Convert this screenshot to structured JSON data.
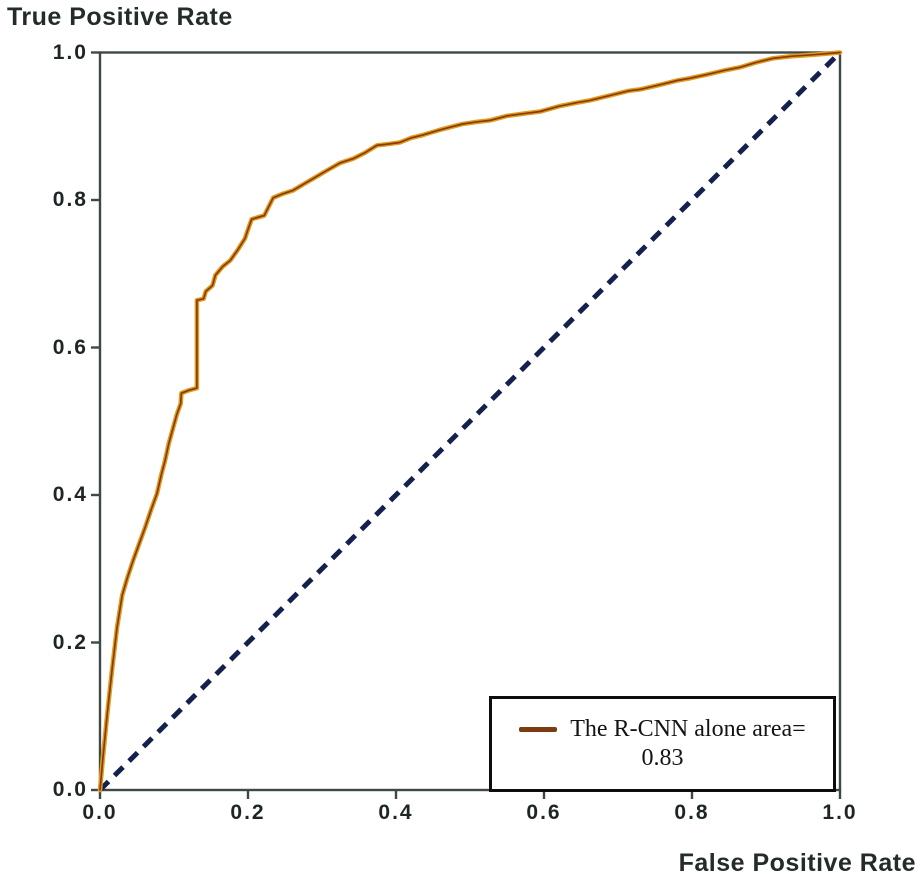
{
  "chart_data": {
    "type": "line",
    "title": "",
    "xlabel": "False Positive Rate",
    "ylabel": "True Positive Rate",
    "xlim": [
      0.0,
      1.0
    ],
    "ylim": [
      0.0,
      1.0
    ],
    "xticks": [
      "0.0",
      "0.2",
      "0.4",
      "0.6",
      "0.8",
      "1.0"
    ],
    "yticks": [
      "0.0",
      "0.2",
      "0.4",
      "0.6",
      "0.8",
      "1.0"
    ],
    "grid": false,
    "frame_color": "#3d4848",
    "tick_label_color": "#1d2526",
    "legend": {
      "position": "lower right",
      "entries": [
        {
          "label": "The R-CNN alone area=",
          "value_line": "0.83",
          "auc": 0.83,
          "swatch_color": "#7a3c10"
        }
      ]
    },
    "series": [
      {
        "name": "The R-CNN alone (area = 0.83)",
        "style": "solid",
        "color_outer": "#df9d22",
        "color_core": "#8a3a05",
        "points": [
          [
            0.0,
            0.0
          ],
          [
            0.004,
            0.045
          ],
          [
            0.01,
            0.105
          ],
          [
            0.016,
            0.16
          ],
          [
            0.023,
            0.22
          ],
          [
            0.03,
            0.264
          ],
          [
            0.037,
            0.288
          ],
          [
            0.045,
            0.312
          ],
          [
            0.053,
            0.334
          ],
          [
            0.061,
            0.356
          ],
          [
            0.069,
            0.38
          ],
          [
            0.077,
            0.402
          ],
          [
            0.083,
            0.428
          ],
          [
            0.088,
            0.447
          ],
          [
            0.093,
            0.47
          ],
          [
            0.099,
            0.492
          ],
          [
            0.104,
            0.51
          ],
          [
            0.109,
            0.524
          ],
          [
            0.11,
            0.538
          ],
          [
            0.12,
            0.542
          ],
          [
            0.131,
            0.545
          ],
          [
            0.131,
            0.664
          ],
          [
            0.14,
            0.666
          ],
          [
            0.143,
            0.676
          ],
          [
            0.152,
            0.684
          ],
          [
            0.156,
            0.698
          ],
          [
            0.166,
            0.71
          ],
          [
            0.176,
            0.718
          ],
          [
            0.186,
            0.732
          ],
          [
            0.196,
            0.748
          ],
          [
            0.2,
            0.76
          ],
          [
            0.205,
            0.774
          ],
          [
            0.215,
            0.777
          ],
          [
            0.222,
            0.779
          ],
          [
            0.228,
            0.791
          ],
          [
            0.234,
            0.803
          ],
          [
            0.246,
            0.808
          ],
          [
            0.261,
            0.813
          ],
          [
            0.276,
            0.822
          ],
          [
            0.288,
            0.829
          ],
          [
            0.305,
            0.839
          ],
          [
            0.324,
            0.85
          ],
          [
            0.342,
            0.856
          ],
          [
            0.358,
            0.864
          ],
          [
            0.374,
            0.874
          ],
          [
            0.39,
            0.876
          ],
          [
            0.405,
            0.878
          ],
          [
            0.42,
            0.884
          ],
          [
            0.436,
            0.888
          ],
          [
            0.459,
            0.895
          ],
          [
            0.49,
            0.903
          ],
          [
            0.51,
            0.906
          ],
          [
            0.527,
            0.908
          ],
          [
            0.55,
            0.914
          ],
          [
            0.572,
            0.917
          ],
          [
            0.595,
            0.92
          ],
          [
            0.62,
            0.927
          ],
          [
            0.645,
            0.932
          ],
          [
            0.662,
            0.935
          ],
          [
            0.69,
            0.942
          ],
          [
            0.714,
            0.948
          ],
          [
            0.73,
            0.95
          ],
          [
            0.76,
            0.957
          ],
          [
            0.78,
            0.962
          ],
          [
            0.797,
            0.965
          ],
          [
            0.82,
            0.97
          ],
          [
            0.845,
            0.976
          ],
          [
            0.865,
            0.98
          ],
          [
            0.885,
            0.986
          ],
          [
            0.909,
            0.992
          ],
          [
            0.935,
            0.995
          ],
          [
            0.965,
            0.997
          ],
          [
            1.0,
            1.0
          ]
        ]
      },
      {
        "name": "chance diagonal",
        "style": "dashed",
        "color": "#14204d",
        "points": [
          [
            0.0,
            0.0
          ],
          [
            1.0,
            1.0
          ]
        ]
      }
    ]
  }
}
